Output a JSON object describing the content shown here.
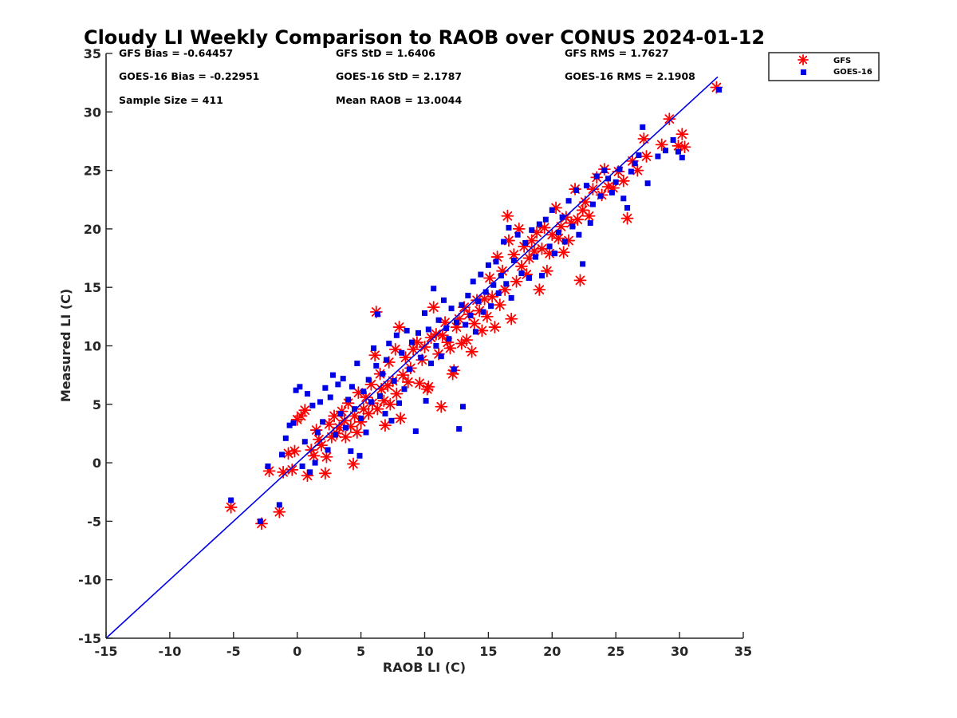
{
  "chart_data": {
    "type": "scatter",
    "title": "Cloudy LI Weekly Comparison to RAOB over CONUS 2024-01-12",
    "xlabel": "RAOB LI (C)",
    "ylabel": "Measured LI (C)",
    "xlim": [
      -15,
      35
    ],
    "ylim": [
      -15,
      35
    ],
    "xticks": [
      "-15",
      "-10",
      "-5",
      "0",
      "5",
      "10",
      "15",
      "20",
      "25",
      "30",
      "35"
    ],
    "yticks": [
      "-15",
      "-10",
      "-5",
      "0",
      "5",
      "10",
      "15",
      "20",
      "25",
      "30",
      "35"
    ],
    "grid": false,
    "legend_position": "top-right, outside plot area",
    "reference_line": {
      "label": "",
      "x": [
        -15,
        33
      ],
      "y": [
        -15,
        33
      ],
      "color": "#0000e6"
    },
    "stats": [
      "GFS Bias = -0.64457",
      "GFS StD = 1.6406",
      "GFS RMS = 1.7627",
      "GOES-16 Bias = -0.22951",
      "GOES-16 StD = 2.1787",
      "GOES-16 RMS = 2.1908",
      "Sample Size = 411",
      "Mean RAOB = 13.0044"
    ],
    "series": [
      {
        "name": "GFS",
        "marker": "asterisk",
        "color": "#ff0000",
        "points": [
          [
            -5.2,
            -3.8
          ],
          [
            -2.8,
            -5.2
          ],
          [
            -2.2,
            -0.7
          ],
          [
            -1.4,
            -4.2
          ],
          [
            -1.1,
            -0.8
          ],
          [
            -0.7,
            0.8
          ],
          [
            -0.4,
            -0.6
          ],
          [
            -0.2,
            1.0
          ],
          [
            0.0,
            3.7
          ],
          [
            0.3,
            4.0
          ],
          [
            0.6,
            4.5
          ],
          [
            0.8,
            -1.1
          ],
          [
            1.1,
            1.1
          ],
          [
            1.3,
            0.6
          ],
          [
            1.5,
            2.8
          ],
          [
            1.7,
            2.0
          ],
          [
            1.9,
            1.5
          ],
          [
            2.2,
            -0.9
          ],
          [
            2.3,
            0.5
          ],
          [
            2.5,
            3.3
          ],
          [
            2.7,
            2.2
          ],
          [
            2.9,
            4.0
          ],
          [
            3.1,
            2.5
          ],
          [
            3.3,
            3.0
          ],
          [
            3.5,
            4.4
          ],
          [
            3.7,
            3.6
          ],
          [
            3.8,
            2.2
          ],
          [
            4.0,
            5.1
          ],
          [
            4.2,
            3.1
          ],
          [
            4.4,
            -0.1
          ],
          [
            4.5,
            4.0
          ],
          [
            4.7,
            2.6
          ],
          [
            4.8,
            6.0
          ],
          [
            5.0,
            3.5
          ],
          [
            5.2,
            4.6
          ],
          [
            5.4,
            5.6
          ],
          [
            5.6,
            4.2
          ],
          [
            5.8,
            6.7
          ],
          [
            5.9,
            5.1
          ],
          [
            6.1,
            9.2
          ],
          [
            6.2,
            12.9
          ],
          [
            6.3,
            4.6
          ],
          [
            6.5,
            7.6
          ],
          [
            6.6,
            6.3
          ],
          [
            6.8,
            5.3
          ],
          [
            6.9,
            3.2
          ],
          [
            7.1,
            6.6
          ],
          [
            7.2,
            8.6
          ],
          [
            7.3,
            5.0
          ],
          [
            7.5,
            7.0
          ],
          [
            7.7,
            9.7
          ],
          [
            7.8,
            5.9
          ],
          [
            8.0,
            11.6
          ],
          [
            8.1,
            3.8
          ],
          [
            8.3,
            7.5
          ],
          [
            8.5,
            9.0
          ],
          [
            8.7,
            6.9
          ],
          [
            8.9,
            8.1
          ],
          [
            9.1,
            9.7
          ],
          [
            9.4,
            10.3
          ],
          [
            9.6,
            6.8
          ],
          [
            9.8,
            8.8
          ],
          [
            10.0,
            9.9
          ],
          [
            10.2,
            6.3
          ],
          [
            10.3,
            6.5
          ],
          [
            10.5,
            10.7
          ],
          [
            10.7,
            13.3
          ],
          [
            10.9,
            11.0
          ],
          [
            11.1,
            9.3
          ],
          [
            11.3,
            4.8
          ],
          [
            11.4,
            10.9
          ],
          [
            11.6,
            12.0
          ],
          [
            11.8,
            10.3
          ],
          [
            12.0,
            9.8
          ],
          [
            12.2,
            7.6
          ],
          [
            12.3,
            7.9
          ],
          [
            12.5,
            11.6
          ],
          [
            12.7,
            12.3
          ],
          [
            12.9,
            10.2
          ],
          [
            13.1,
            13.3
          ],
          [
            13.3,
            10.5
          ],
          [
            13.5,
            12.7
          ],
          [
            13.7,
            9.5
          ],
          [
            13.9,
            11.9
          ],
          [
            14.1,
            13.9
          ],
          [
            14.3,
            13.0
          ],
          [
            14.5,
            11.3
          ],
          [
            14.7,
            14.0
          ],
          [
            14.9,
            12.5
          ],
          [
            15.1,
            15.8
          ],
          [
            15.3,
            14.2
          ],
          [
            15.5,
            11.6
          ],
          [
            15.7,
            17.6
          ],
          [
            15.9,
            13.5
          ],
          [
            16.1,
            16.4
          ],
          [
            16.3,
            14.8
          ],
          [
            16.5,
            21.1
          ],
          [
            16.6,
            19.0
          ],
          [
            16.8,
            12.3
          ],
          [
            17.0,
            17.8
          ],
          [
            17.2,
            15.5
          ],
          [
            17.4,
            20.0
          ],
          [
            17.6,
            16.8
          ],
          [
            17.8,
            18.5
          ],
          [
            18.0,
            16.1
          ],
          [
            18.2,
            17.5
          ],
          [
            18.4,
            19.0
          ],
          [
            18.6,
            18.1
          ],
          [
            18.8,
            19.7
          ],
          [
            19.0,
            14.8
          ],
          [
            19.2,
            18.3
          ],
          [
            19.4,
            20.1
          ],
          [
            19.6,
            16.4
          ],
          [
            19.8,
            17.9
          ],
          [
            20.0,
            19.5
          ],
          [
            20.3,
            21.8
          ],
          [
            20.5,
            19.2
          ],
          [
            20.7,
            20.2
          ],
          [
            20.9,
            18.0
          ],
          [
            21.1,
            21.0
          ],
          [
            21.3,
            19.0
          ],
          [
            21.5,
            20.5
          ],
          [
            21.8,
            23.4
          ],
          [
            22.0,
            20.8
          ],
          [
            22.2,
            15.6
          ],
          [
            22.4,
            21.6
          ],
          [
            22.6,
            22.3
          ],
          [
            22.9,
            21.1
          ],
          [
            23.2,
            23.4
          ],
          [
            23.5,
            24.4
          ],
          [
            23.9,
            22.9
          ],
          [
            24.1,
            25.1
          ],
          [
            24.4,
            23.6
          ],
          [
            24.8,
            23.5
          ],
          [
            25.2,
            24.9
          ],
          [
            25.6,
            24.1
          ],
          [
            25.9,
            20.9
          ],
          [
            26.3,
            25.8
          ],
          [
            26.7,
            25.0
          ],
          [
            27.2,
            27.7
          ],
          [
            27.4,
            26.2
          ],
          [
            28.6,
            27.2
          ],
          [
            29.2,
            29.4
          ],
          [
            29.9,
            27.1
          ],
          [
            30.2,
            28.1
          ],
          [
            30.4,
            27.0
          ],
          [
            32.9,
            32.1
          ]
        ]
      },
      {
        "name": "GOES-16",
        "marker": "square",
        "color": "#0000e6",
        "points": [
          [
            -5.2,
            -3.2
          ],
          [
            -2.9,
            -5.0
          ],
          [
            -2.3,
            -0.3
          ],
          [
            -1.4,
            -3.6
          ],
          [
            -1.2,
            0.7
          ],
          [
            -0.9,
            2.1
          ],
          [
            -0.6,
            3.2
          ],
          [
            -0.3,
            3.4
          ],
          [
            -0.1,
            6.2
          ],
          [
            0.2,
            6.5
          ],
          [
            0.4,
            -0.3
          ],
          [
            0.6,
            1.8
          ],
          [
            0.8,
            5.9
          ],
          [
            1.0,
            -0.8
          ],
          [
            1.2,
            4.9
          ],
          [
            1.4,
            0.0
          ],
          [
            1.6,
            2.6
          ],
          [
            1.8,
            5.2
          ],
          [
            2.0,
            3.5
          ],
          [
            2.2,
            6.4
          ],
          [
            2.4,
            1.1
          ],
          [
            2.6,
            5.6
          ],
          [
            2.8,
            7.5
          ],
          [
            3.0,
            2.4
          ],
          [
            3.2,
            6.7
          ],
          [
            3.4,
            4.2
          ],
          [
            3.6,
            7.2
          ],
          [
            3.8,
            3.0
          ],
          [
            4.0,
            5.4
          ],
          [
            4.2,
            1.0
          ],
          [
            4.3,
            6.5
          ],
          [
            4.5,
            4.6
          ],
          [
            4.7,
            8.5
          ],
          [
            4.9,
            0.6
          ],
          [
            5.0,
            3.8
          ],
          [
            5.2,
            6.1
          ],
          [
            5.4,
            2.6
          ],
          [
            5.6,
            7.1
          ],
          [
            5.8,
            5.2
          ],
          [
            6.0,
            9.8
          ],
          [
            6.2,
            8.3
          ],
          [
            6.3,
            12.7
          ],
          [
            6.5,
            5.7
          ],
          [
            6.7,
            7.6
          ],
          [
            6.9,
            4.2
          ],
          [
            7.0,
            8.8
          ],
          [
            7.2,
            10.2
          ],
          [
            7.4,
            3.6
          ],
          [
            7.6,
            7.0
          ],
          [
            7.8,
            10.9
          ],
          [
            8.0,
            5.1
          ],
          [
            8.2,
            9.4
          ],
          [
            8.4,
            6.3
          ],
          [
            8.6,
            11.3
          ],
          [
            8.8,
            8.0
          ],
          [
            9.0,
            10.3
          ],
          [
            9.3,
            2.7
          ],
          [
            9.5,
            11.1
          ],
          [
            9.7,
            9.0
          ],
          [
            10.0,
            12.8
          ],
          [
            10.1,
            5.3
          ],
          [
            10.3,
            11.4
          ],
          [
            10.5,
            8.5
          ],
          [
            10.7,
            14.9
          ],
          [
            10.9,
            10.0
          ],
          [
            11.1,
            12.2
          ],
          [
            11.3,
            9.1
          ],
          [
            11.5,
            13.9
          ],
          [
            11.7,
            11.5
          ],
          [
            11.9,
            10.6
          ],
          [
            12.1,
            13.2
          ],
          [
            12.3,
            8.0
          ],
          [
            12.5,
            12.0
          ],
          [
            12.7,
            2.9
          ],
          [
            12.9,
            13.5
          ],
          [
            13.0,
            4.8
          ],
          [
            13.2,
            11.8
          ],
          [
            13.4,
            14.3
          ],
          [
            13.6,
            12.6
          ],
          [
            13.8,
            15.5
          ],
          [
            14.0,
            11.2
          ],
          [
            14.2,
            13.8
          ],
          [
            14.4,
            16.1
          ],
          [
            14.6,
            12.9
          ],
          [
            14.8,
            14.6
          ],
          [
            15.0,
            16.9
          ],
          [
            15.2,
            13.4
          ],
          [
            15.4,
            15.2
          ],
          [
            15.6,
            17.2
          ],
          [
            15.8,
            14.5
          ],
          [
            16.0,
            16.0
          ],
          [
            16.2,
            18.9
          ],
          [
            16.4,
            15.3
          ],
          [
            16.6,
            20.1
          ],
          [
            16.8,
            14.1
          ],
          [
            17.0,
            17.3
          ],
          [
            17.3,
            19.5
          ],
          [
            17.6,
            16.2
          ],
          [
            17.9,
            18.8
          ],
          [
            18.2,
            15.8
          ],
          [
            18.4,
            19.9
          ],
          [
            18.7,
            17.6
          ],
          [
            19.0,
            20.4
          ],
          [
            19.2,
            16.0
          ],
          [
            19.5,
            20.8
          ],
          [
            19.8,
            18.5
          ],
          [
            20.0,
            21.6
          ],
          [
            20.2,
            17.9
          ],
          [
            20.5,
            19.7
          ],
          [
            20.8,
            21.0
          ],
          [
            21.0,
            18.9
          ],
          [
            21.3,
            22.4
          ],
          [
            21.6,
            20.2
          ],
          [
            21.9,
            23.3
          ],
          [
            22.1,
            19.5
          ],
          [
            22.4,
            17.0
          ],
          [
            22.7,
            23.7
          ],
          [
            23.0,
            20.5
          ],
          [
            23.2,
            22.1
          ],
          [
            23.5,
            24.5
          ],
          [
            23.8,
            22.8
          ],
          [
            24.1,
            25.0
          ],
          [
            24.4,
            24.3
          ],
          [
            24.7,
            23.1
          ],
          [
            25.0,
            24.0
          ],
          [
            25.3,
            25.1
          ],
          [
            25.6,
            22.6
          ],
          [
            25.9,
            21.8
          ],
          [
            26.2,
            24.9
          ],
          [
            26.5,
            25.6
          ],
          [
            26.8,
            26.3
          ],
          [
            27.1,
            28.7
          ],
          [
            27.5,
            23.9
          ],
          [
            28.3,
            26.2
          ],
          [
            28.9,
            26.7
          ],
          [
            29.5,
            27.6
          ],
          [
            29.9,
            26.6
          ],
          [
            30.2,
            26.1
          ],
          [
            33.1,
            31.9
          ]
        ]
      }
    ]
  }
}
